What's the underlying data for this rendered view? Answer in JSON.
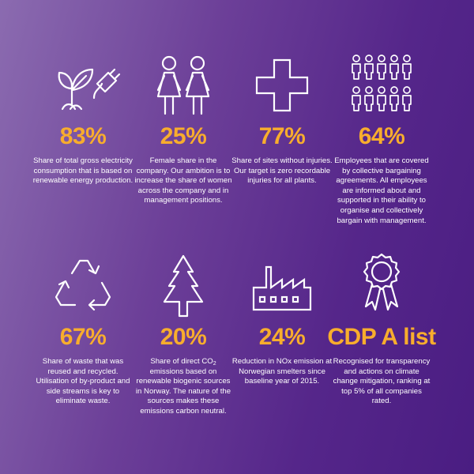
{
  "tiles": [
    {
      "icon": "plant-and-plug-icon",
      "stat": "83%",
      "desc": "Share of total gross electricity consumption that is based on renewable energy production."
    },
    {
      "icon": "female-figures-icon",
      "stat": "25%",
      "desc": "Female share in the company. Our ambition is to increase the share of women across the company and in management positions."
    },
    {
      "icon": "medical-cross-icon",
      "stat": "77%",
      "desc": "Share of sites without injuries. Our target is zero recordable injuries for all plants."
    },
    {
      "icon": "people-group-icon",
      "stat": "64%",
      "desc": "Employees that are covered by collective bargaining agreements. All employees are informed about and supported in their ability to organise and collectively bargain with management."
    },
    {
      "icon": "recycle-arrows-icon",
      "stat": "67%",
      "desc": "Share of waste that was reused and recycled. Utilisation of by-product and side streams is key to eliminate waste."
    },
    {
      "icon": "pine-tree-icon",
      "stat": "20%",
      "desc_pre": "Share of direct CO",
      "desc_sub": "2",
      "desc_post": " emissions based on renewable biogenic sources in Norway. The nature of the sources makes these emissions carbon neutral."
    },
    {
      "icon": "factory-icon",
      "stat": "24%",
      "desc": "Reduction in NOx emission at Norwegian smelters since baseline year of 2015."
    },
    {
      "icon": "award-rosette-icon",
      "stat": "CDP A list",
      "desc": "Recognised for transparency and actions on climate change mitigation, ranking at top 5% of all companies rated."
    }
  ],
  "colors": {
    "accent": "#f8ad2d",
    "text": "#ffffff",
    "background_light": "#8b6bb0",
    "background_dark": "#4a1d82"
  }
}
